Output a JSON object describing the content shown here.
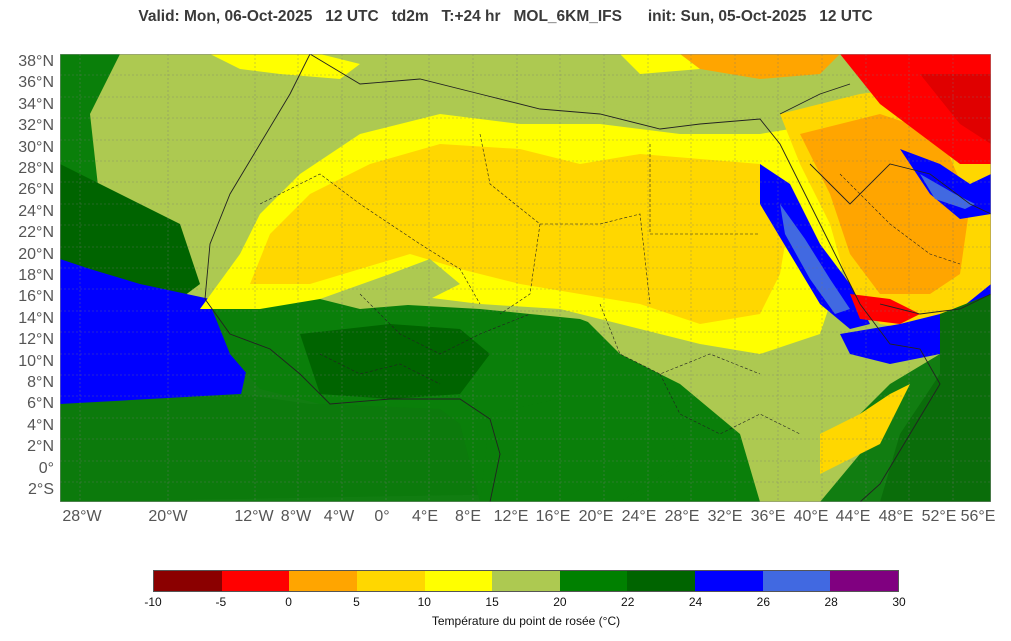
{
  "title": "Valid: Mon, 06-Oct-2025   12 UTC   td2m   T:+24 hr   MOL_6KM_IFS      init: Sun, 05-Oct-2025   12 UTC",
  "lat_labels": [
    "38°N",
    "36°N",
    "34°N",
    "32°N",
    "30°N",
    "28°N",
    "26°N",
    "24°N",
    "22°N",
    "20°N",
    "18°N",
    "16°N",
    "14°N",
    "12°N",
    "10°N",
    "8°N",
    "6°N",
    "4°N",
    "2°N",
    "0°",
    "2°S"
  ],
  "lon_labels": [
    "28°W",
    "20°W",
    "12°W",
    "8°W",
    "4°W",
    "0°",
    "4°E",
    "8°E",
    "12°E",
    "16°E",
    "20°E",
    "24°E",
    "28°E",
    "32°E",
    "36°E",
    "40°E",
    "44°E",
    "48°E",
    "52°E",
    "56°E"
  ],
  "legend": {
    "ticks": [
      "-10",
      "-5",
      "0",
      "5",
      "10",
      "15",
      "20",
      "22",
      "24",
      "26",
      "28",
      "30"
    ],
    "colors": [
      "#8b0000",
      "#ff0000",
      "#ffa500",
      "#ffd700",
      "#ffff00",
      "#adc951",
      "#008000",
      "#006400",
      "#0000ff",
      "#4169e1",
      "#800080"
    ],
    "label": "Température du point de rosée (°C)"
  },
  "colors": {
    "ocean": "#1a8a1a",
    "warm_ocean": "#006400",
    "blue": "#0000ff",
    "royal": "#4169e1",
    "sahel": "#adc951",
    "sahara": "#ffd700",
    "desert_yellow": "#ffff00",
    "orange": "#ffa500",
    "red": "#ff0000"
  }
}
